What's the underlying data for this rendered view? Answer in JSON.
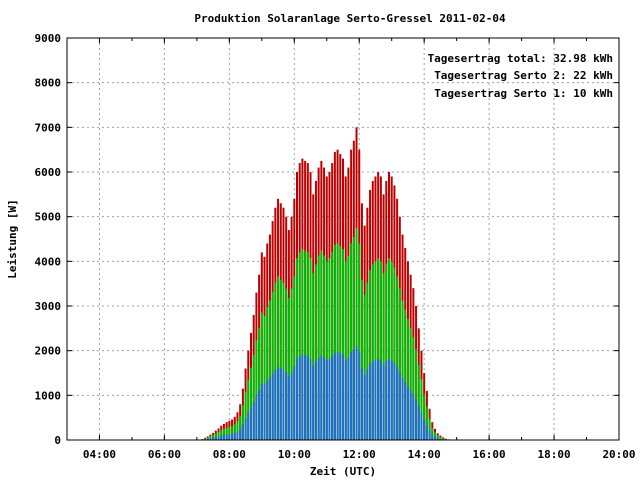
{
  "chart_data": {
    "type": "bar",
    "title": "Produktion Solaranlage Serto-Gressel 2011-02-04",
    "xlabel": "Zeit (UTC)",
    "ylabel": "Leistung [W]",
    "ylim": [
      0,
      9000
    ],
    "xlim_hours": [
      3,
      20
    ],
    "grid": true,
    "legend_position": "top-right",
    "y_ticks": [
      "0",
      "1000",
      "2000",
      "3000",
      "4000",
      "5000",
      "6000",
      "7000",
      "8000",
      "9000"
    ],
    "x_ticks": [
      "04:00",
      "06:00",
      "08:00",
      "10:00",
      "12:00",
      "14:00",
      "16:00",
      "18:00",
      "20:00"
    ],
    "legend": [
      {
        "label": "Tagesertrag total: 32.98 kWh",
        "color": "#c00000"
      },
      {
        "label": "Tagesertrag Serto 2: 22 kWh",
        "color": "#00bb00"
      },
      {
        "label": "Tagesertrag Serto 1: 10 kWh",
        "color": "#1a6fd0"
      }
    ],
    "time_step_minutes": 5,
    "start_time": "07:00",
    "series": [
      {
        "name": "Tagesertrag total",
        "color": "#c00000",
        "values": [
          0,
          0,
          20,
          50,
          80,
          120,
          160,
          210,
          260,
          320,
          360,
          400,
          430,
          460,
          520,
          620,
          800,
          1150,
          1600,
          2000,
          2400,
          2800,
          3300,
          3700,
          4200,
          4100,
          4400,
          4600,
          4900,
          5200,
          5400,
          5300,
          5200,
          5000,
          4700,
          5000,
          5400,
          6000,
          6200,
          6300,
          6250,
          6200,
          6000,
          5500,
          5800,
          6100,
          6250,
          6100,
          5900,
          6000,
          6200,
          6450,
          6500,
          6400,
          6300,
          5900,
          6100,
          6500,
          6700,
          7000,
          6500,
          5300,
          4800,
          5200,
          5600,
          5800,
          5900,
          6000,
          5900,
          5500,
          5800,
          6000,
          5900,
          5700,
          5400,
          5000,
          4600,
          4300,
          4000,
          3700,
          3400,
          3000,
          2500,
          2000,
          1500,
          1100,
          700,
          400,
          250,
          150,
          100,
          60,
          30,
          15,
          0
        ]
      },
      {
        "name": "Tagesertrag Serto 2",
        "color": "#00bb00",
        "values": [
          0,
          0,
          15,
          35,
          55,
          80,
          110,
          145,
          180,
          220,
          250,
          270,
          290,
          310,
          350,
          420,
          540,
          780,
          1080,
          1350,
          1620,
          1900,
          2230,
          2500,
          2850,
          2780,
          2980,
          3120,
          3320,
          3520,
          3660,
          3590,
          3520,
          3390,
          3180,
          3390,
          3660,
          4070,
          4200,
          4270,
          4240,
          4200,
          4070,
          3730,
          3930,
          4130,
          4240,
          4130,
          4000,
          4070,
          4200,
          4370,
          4400,
          4340,
          4270,
          4000,
          4130,
          4400,
          4540,
          4740,
          4400,
          3590,
          3250,
          3520,
          3800,
          3930,
          4000,
          4070,
          4000,
          3730,
          3930,
          4070,
          4000,
          3860,
          3660,
          3390,
          3120,
          2920,
          2710,
          2510,
          2300,
          2030,
          1690,
          1360,
          1020,
          750,
          470,
          270,
          170,
          100,
          70,
          40,
          20,
          10,
          0
        ]
      },
      {
        "name": "Tagesertrag Serto 1",
        "color": "#1a6fd0",
        "values": [
          0,
          0,
          6,
          15,
          24,
          36,
          48,
          64,
          79,
          97,
          109,
          121,
          130,
          139,
          158,
          188,
          243,
          349,
          485,
          606,
          727,
          849,
          1000,
          1121,
          1273,
          1242,
          1333,
          1394,
          1485,
          1576,
          1636,
          1606,
          1576,
          1515,
          1424,
          1515,
          1636,
          1818,
          1879,
          1909,
          1894,
          1879,
          1818,
          1667,
          1758,
          1848,
          1894,
          1848,
          1788,
          1818,
          1879,
          1955,
          1970,
          1939,
          1909,
          1788,
          1848,
          1970,
          2030,
          2121,
          1970,
          1606,
          1455,
          1576,
          1697,
          1758,
          1788,
          1818,
          1788,
          1667,
          1758,
          1818,
          1788,
          1727,
          1636,
          1515,
          1394,
          1303,
          1212,
          1121,
          1030,
          909,
          758,
          606,
          455,
          333,
          212,
          121,
          76,
          45,
          30,
          18,
          9,
          5,
          0
        ]
      }
    ]
  }
}
